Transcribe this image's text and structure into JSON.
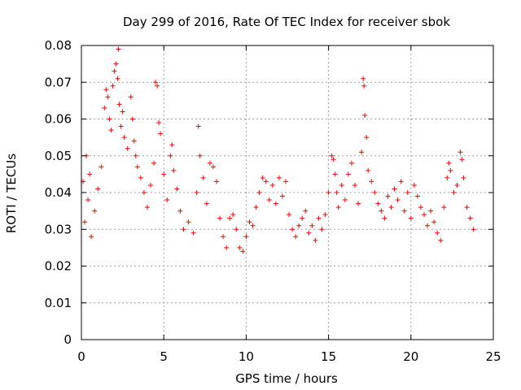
{
  "chart_data": {
    "type": "scatter",
    "title": "Day 299 of 2016, Rate Of TEC Index for receiver sbok",
    "xlabel": "GPS time / hours",
    "ylabel": "ROTI / TECUs",
    "xlim": [
      0,
      25
    ],
    "ylim": [
      0,
      0.08
    ],
    "x_ticks": [
      0,
      5,
      10,
      15,
      20,
      25
    ],
    "x_tick_labels": [
      "0",
      "5",
      "10",
      "15",
      "20",
      "25"
    ],
    "y_ticks": [
      0,
      0.01,
      0.02,
      0.03,
      0.04,
      0.05,
      0.06,
      0.07,
      0.08
    ],
    "y_tick_labels": [
      "0",
      "0.01",
      "0.02",
      "0.03",
      "0.04",
      "0.05",
      "0.06",
      "0.07",
      "0.08"
    ],
    "grid": true,
    "marker": "+",
    "color": "#ff0000",
    "series": [
      {
        "name": "ROTI",
        "points": [
          [
            0.1,
            0.043
          ],
          [
            0.2,
            0.032
          ],
          [
            0.3,
            0.05
          ],
          [
            0.4,
            0.038
          ],
          [
            0.5,
            0.045
          ],
          [
            0.6,
            0.028
          ],
          [
            0.8,
            0.035
          ],
          [
            1.0,
            0.041
          ],
          [
            1.2,
            0.047
          ],
          [
            1.4,
            0.063
          ],
          [
            1.5,
            0.068
          ],
          [
            1.6,
            0.066
          ],
          [
            1.7,
            0.06
          ],
          [
            1.8,
            0.057
          ],
          [
            1.9,
            0.069
          ],
          [
            2.0,
            0.073
          ],
          [
            2.1,
            0.075
          ],
          [
            2.2,
            0.071
          ],
          [
            2.25,
            0.079
          ],
          [
            2.3,
            0.064
          ],
          [
            2.4,
            0.058
          ],
          [
            2.5,
            0.062
          ],
          [
            2.6,
            0.055
          ],
          [
            2.8,
            0.052
          ],
          [
            3.0,
            0.066
          ],
          [
            3.1,
            0.06
          ],
          [
            3.2,
            0.054
          ],
          [
            3.3,
            0.05
          ],
          [
            3.4,
            0.047
          ],
          [
            3.6,
            0.044
          ],
          [
            3.8,
            0.04
          ],
          [
            4.0,
            0.036
          ],
          [
            4.2,
            0.042
          ],
          [
            4.4,
            0.048
          ],
          [
            4.5,
            0.07
          ],
          [
            4.6,
            0.069
          ],
          [
            4.7,
            0.059
          ],
          [
            4.8,
            0.056
          ],
          [
            5.0,
            0.045
          ],
          [
            5.2,
            0.038
          ],
          [
            5.4,
            0.05
          ],
          [
            5.5,
            0.053
          ],
          [
            5.6,
            0.046
          ],
          [
            5.8,
            0.041
          ],
          [
            6.0,
            0.035
          ],
          [
            6.2,
            0.03
          ],
          [
            6.5,
            0.032
          ],
          [
            6.8,
            0.029
          ],
          [
            7.0,
            0.04
          ],
          [
            7.1,
            0.058
          ],
          [
            7.2,
            0.05
          ],
          [
            7.4,
            0.044
          ],
          [
            7.6,
            0.037
          ],
          [
            7.8,
            0.048
          ],
          [
            8.0,
            0.047
          ],
          [
            8.2,
            0.043
          ],
          [
            8.4,
            0.033
          ],
          [
            8.6,
            0.028
          ],
          [
            8.8,
            0.025
          ],
          [
            9.0,
            0.033
          ],
          [
            9.2,
            0.034
          ],
          [
            9.4,
            0.03
          ],
          [
            9.6,
            0.025
          ],
          [
            9.8,
            0.024
          ],
          [
            10.0,
            0.028
          ],
          [
            10.2,
            0.032
          ],
          [
            10.4,
            0.031
          ],
          [
            10.6,
            0.036
          ],
          [
            10.8,
            0.04
          ],
          [
            11.0,
            0.044
          ],
          [
            11.2,
            0.043
          ],
          [
            11.4,
            0.038
          ],
          [
            11.6,
            0.042
          ],
          [
            11.8,
            0.037
          ],
          [
            12.0,
            0.044
          ],
          [
            12.2,
            0.039
          ],
          [
            12.4,
            0.043
          ],
          [
            12.6,
            0.034
          ],
          [
            12.8,
            0.03
          ],
          [
            13.0,
            0.028
          ],
          [
            13.2,
            0.031
          ],
          [
            13.4,
            0.033
          ],
          [
            13.6,
            0.035
          ],
          [
            13.8,
            0.029
          ],
          [
            14.0,
            0.031
          ],
          [
            14.2,
            0.027
          ],
          [
            14.4,
            0.033
          ],
          [
            14.6,
            0.03
          ],
          [
            14.8,
            0.034
          ],
          [
            15.0,
            0.04
          ],
          [
            15.2,
            0.05
          ],
          [
            15.3,
            0.049
          ],
          [
            15.4,
            0.045
          ],
          [
            15.5,
            0.04
          ],
          [
            15.6,
            0.036
          ],
          [
            15.8,
            0.042
          ],
          [
            16.0,
            0.038
          ],
          [
            16.2,
            0.045
          ],
          [
            16.4,
            0.048
          ],
          [
            16.6,
            0.042
          ],
          [
            16.8,
            0.037
          ],
          [
            17.0,
            0.051
          ],
          [
            17.1,
            0.071
          ],
          [
            17.15,
            0.069
          ],
          [
            17.2,
            0.061
          ],
          [
            17.3,
            0.055
          ],
          [
            17.4,
            0.046
          ],
          [
            17.6,
            0.043
          ],
          [
            17.8,
            0.04
          ],
          [
            18.0,
            0.037
          ],
          [
            18.2,
            0.035
          ],
          [
            18.4,
            0.033
          ],
          [
            18.6,
            0.039
          ],
          [
            18.8,
            0.036
          ],
          [
            19.0,
            0.041
          ],
          [
            19.2,
            0.038
          ],
          [
            19.4,
            0.043
          ],
          [
            19.6,
            0.035
          ],
          [
            19.8,
            0.04
          ],
          [
            20.0,
            0.033
          ],
          [
            20.2,
            0.042
          ],
          [
            20.4,
            0.039
          ],
          [
            20.6,
            0.036
          ],
          [
            20.8,
            0.034
          ],
          [
            21.0,
            0.031
          ],
          [
            21.2,
            0.035
          ],
          [
            21.4,
            0.032
          ],
          [
            21.6,
            0.029
          ],
          [
            21.8,
            0.027
          ],
          [
            22.0,
            0.036
          ],
          [
            22.2,
            0.044
          ],
          [
            22.3,
            0.048
          ],
          [
            22.4,
            0.046
          ],
          [
            22.6,
            0.04
          ],
          [
            22.8,
            0.042
          ],
          [
            23.0,
            0.051
          ],
          [
            23.1,
            0.049
          ],
          [
            23.2,
            0.044
          ],
          [
            23.4,
            0.036
          ],
          [
            23.6,
            0.033
          ],
          [
            23.8,
            0.03
          ]
        ]
      }
    ]
  }
}
